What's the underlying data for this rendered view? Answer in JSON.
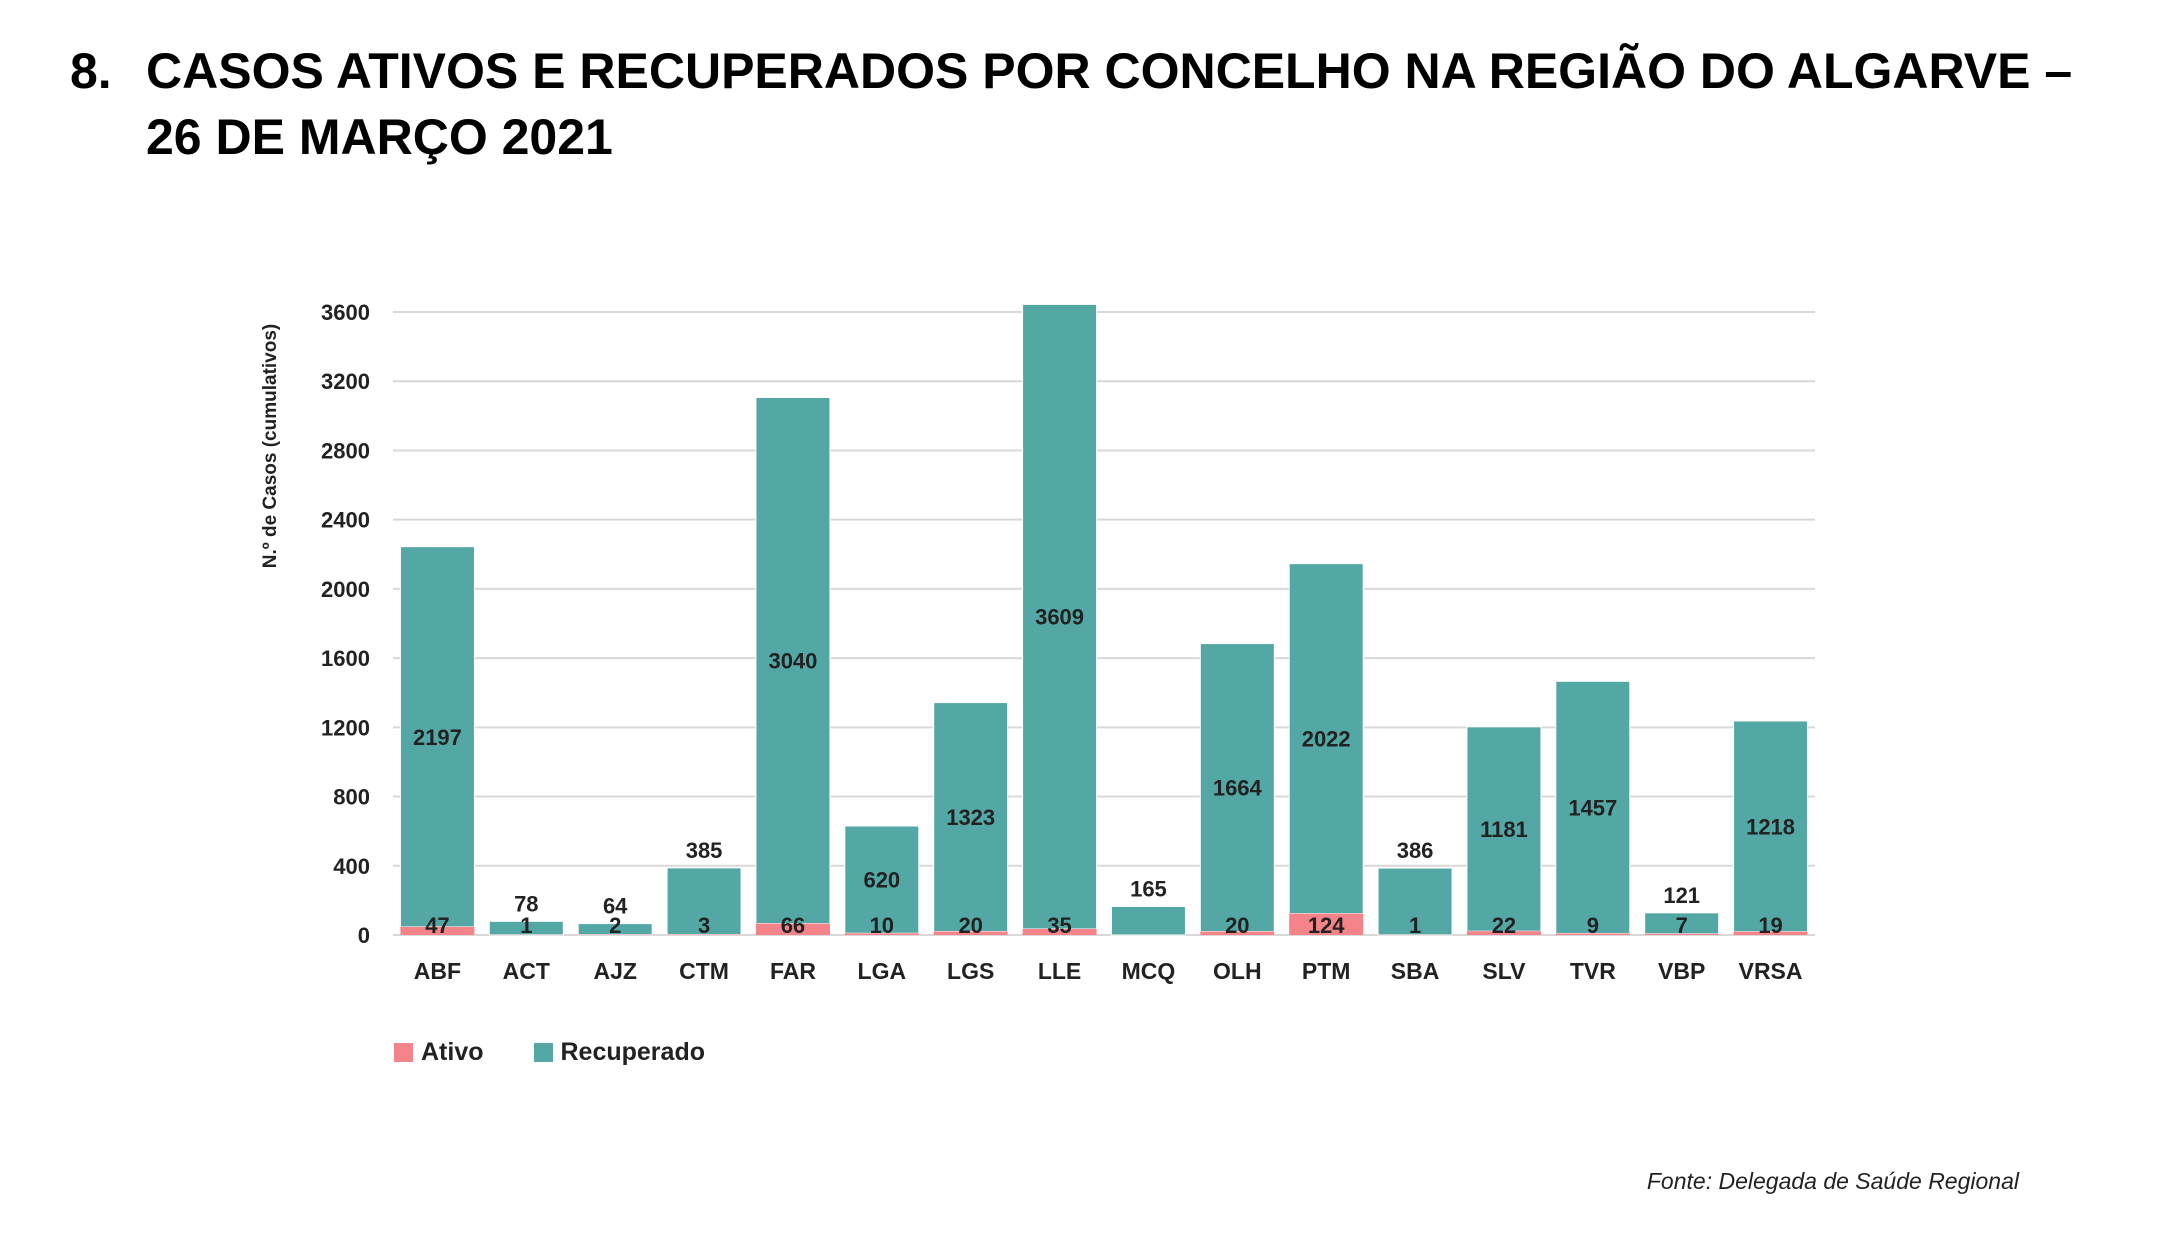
{
  "header": {
    "number": "8.",
    "title": "CASOS ATIVOS E RECUPERADOS POR CONCELHO NA REGIÃO DO ALGARVE – 26 DE MARÇO 2021"
  },
  "chart_data": {
    "type": "bar",
    "stacked": true,
    "title": "",
    "xlabel": "",
    "ylabel": "N.º de Casos (cumulativos)",
    "ylim": [
      0,
      3600
    ],
    "yticks": [
      0,
      400,
      800,
      1200,
      1600,
      2000,
      2400,
      2800,
      3200,
      3600
    ],
    "grid": true,
    "legend_position": "bottom-left",
    "categories": [
      "ABF",
      "ACT",
      "AJZ",
      "CTM",
      "FAR",
      "LGA",
      "LGS",
      "LLE",
      "MCQ",
      "OLH",
      "PTM",
      "SBA",
      "SLV",
      "TVR",
      "VBP",
      "VRSA"
    ],
    "series": [
      {
        "name": "Ativo",
        "color": "#f4838a",
        "values": [
          47,
          1,
          2,
          3,
          66,
          10,
          20,
          35,
          null,
          20,
          124,
          1,
          22,
          9,
          7,
          19
        ]
      },
      {
        "name": "Recuperado",
        "color": "#53a8a6",
        "values": [
          2197,
          78,
          64,
          385,
          3040,
          620,
          1323,
          3609,
          165,
          1664,
          2022,
          386,
          1181,
          1457,
          121,
          1218
        ]
      }
    ]
  },
  "legend": {
    "ativo": "Ativo",
    "recuperado": "Recuperado"
  },
  "source": "Fonte: Delegada de Saúde Regional"
}
